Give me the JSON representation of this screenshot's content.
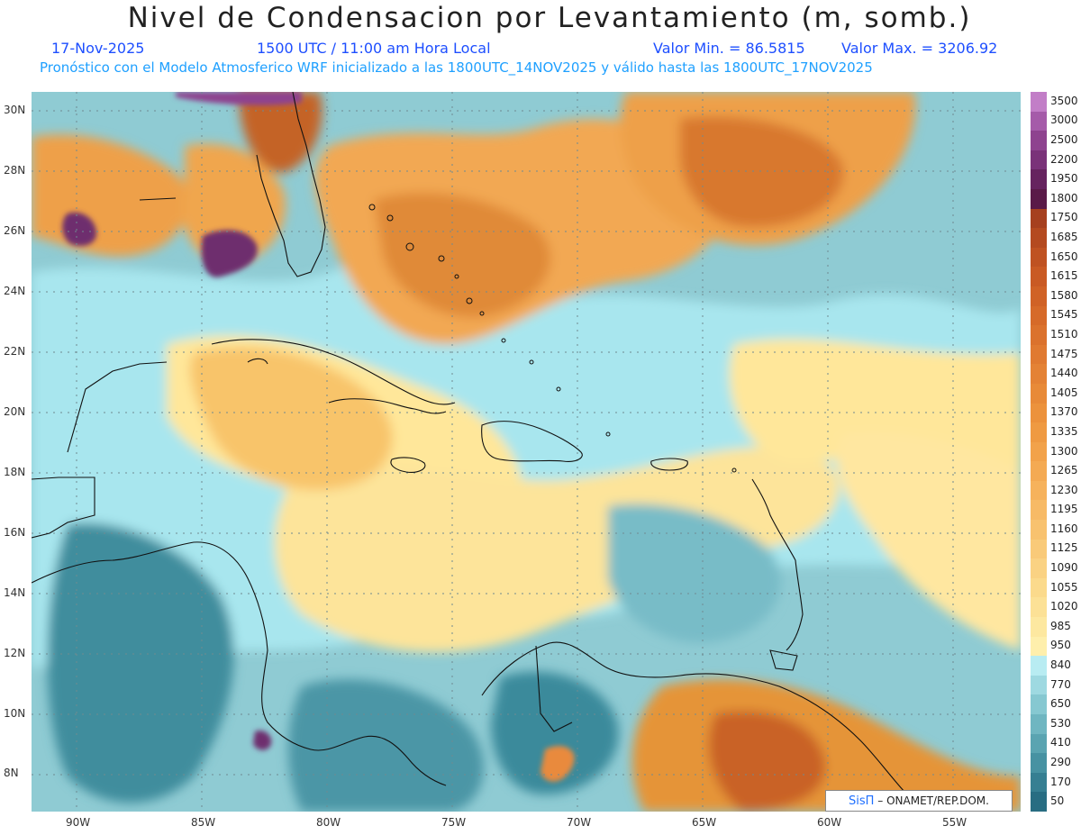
{
  "header": {
    "title": "Nivel de Condensacion por Levantamiento (m, somb.)",
    "date": "17-Nov-2025",
    "time": "1500 UTC / 11:00 am Hora Local",
    "value_min": "Valor Min. = 86.5815",
    "value_max": "Valor Max. = 3206.92",
    "forecast_note": "Pronóstico con el Modelo Atmosferico WRF inicializado a las 1800UTC_14NOV2025 y válido hasta las  1800UTC_17NOV2025"
  },
  "map": {
    "lon_labels": [
      "90W",
      "85W",
      "80W",
      "75W",
      "70W",
      "65W",
      "60W",
      "55W"
    ],
    "lat_labels": [
      "30N",
      "28N",
      "26N",
      "24N",
      "22N",
      "20N",
      "18N",
      "16N",
      "14N",
      "12N",
      "10N",
      "8N"
    ],
    "colors": {
      "low": "#2a7f91",
      "mid_low": "#8fcbd3",
      "mid": "#a8e6ee",
      "yellow": "#ffe79a",
      "orange": "#e98a3c",
      "brown": "#c46426",
      "purple": "#6e2e6e"
    }
  },
  "colorbar": {
    "labels": [
      "3500",
      "3000",
      "2500",
      "2200",
      "1950",
      "1800",
      "1750",
      "1685",
      "1650",
      "1615",
      "1580",
      "1545",
      "1510",
      "1475",
      "1440",
      "1405",
      "1370",
      "1335",
      "1300",
      "1265",
      "1230",
      "1195",
      "1160",
      "1125",
      "1090",
      "1055",
      "1020",
      "985",
      "950",
      "840",
      "770",
      "650",
      "530",
      "410",
      "290",
      "170",
      "50"
    ],
    "colors": [
      "#c27ec7",
      "#a55ba9",
      "#8e438f",
      "#7a3279",
      "#66235f",
      "#5a1a48",
      "#a6401f",
      "#b44a20",
      "#bf5222",
      "#c95a24",
      "#d06226",
      "#d66a29",
      "#db722d",
      "#e07a31",
      "#e48235",
      "#e88a38",
      "#ec923c",
      "#ef9a42",
      "#f2a24a",
      "#f4aa53",
      "#f6b25c",
      "#f7ba66",
      "#f8c26f",
      "#f9ca79",
      "#fad283",
      "#fbda8c",
      "#fce196",
      "#fde8a0",
      "#feefac",
      "#b8ecf2",
      "#9ed9e1",
      "#86c8d1",
      "#6fb6c1",
      "#5aa4b1",
      "#4792a2",
      "#367f92",
      "#286d82"
    ]
  },
  "credit": {
    "logo": "SisΠ",
    "text": "– ONAMET/REP.DOM."
  }
}
